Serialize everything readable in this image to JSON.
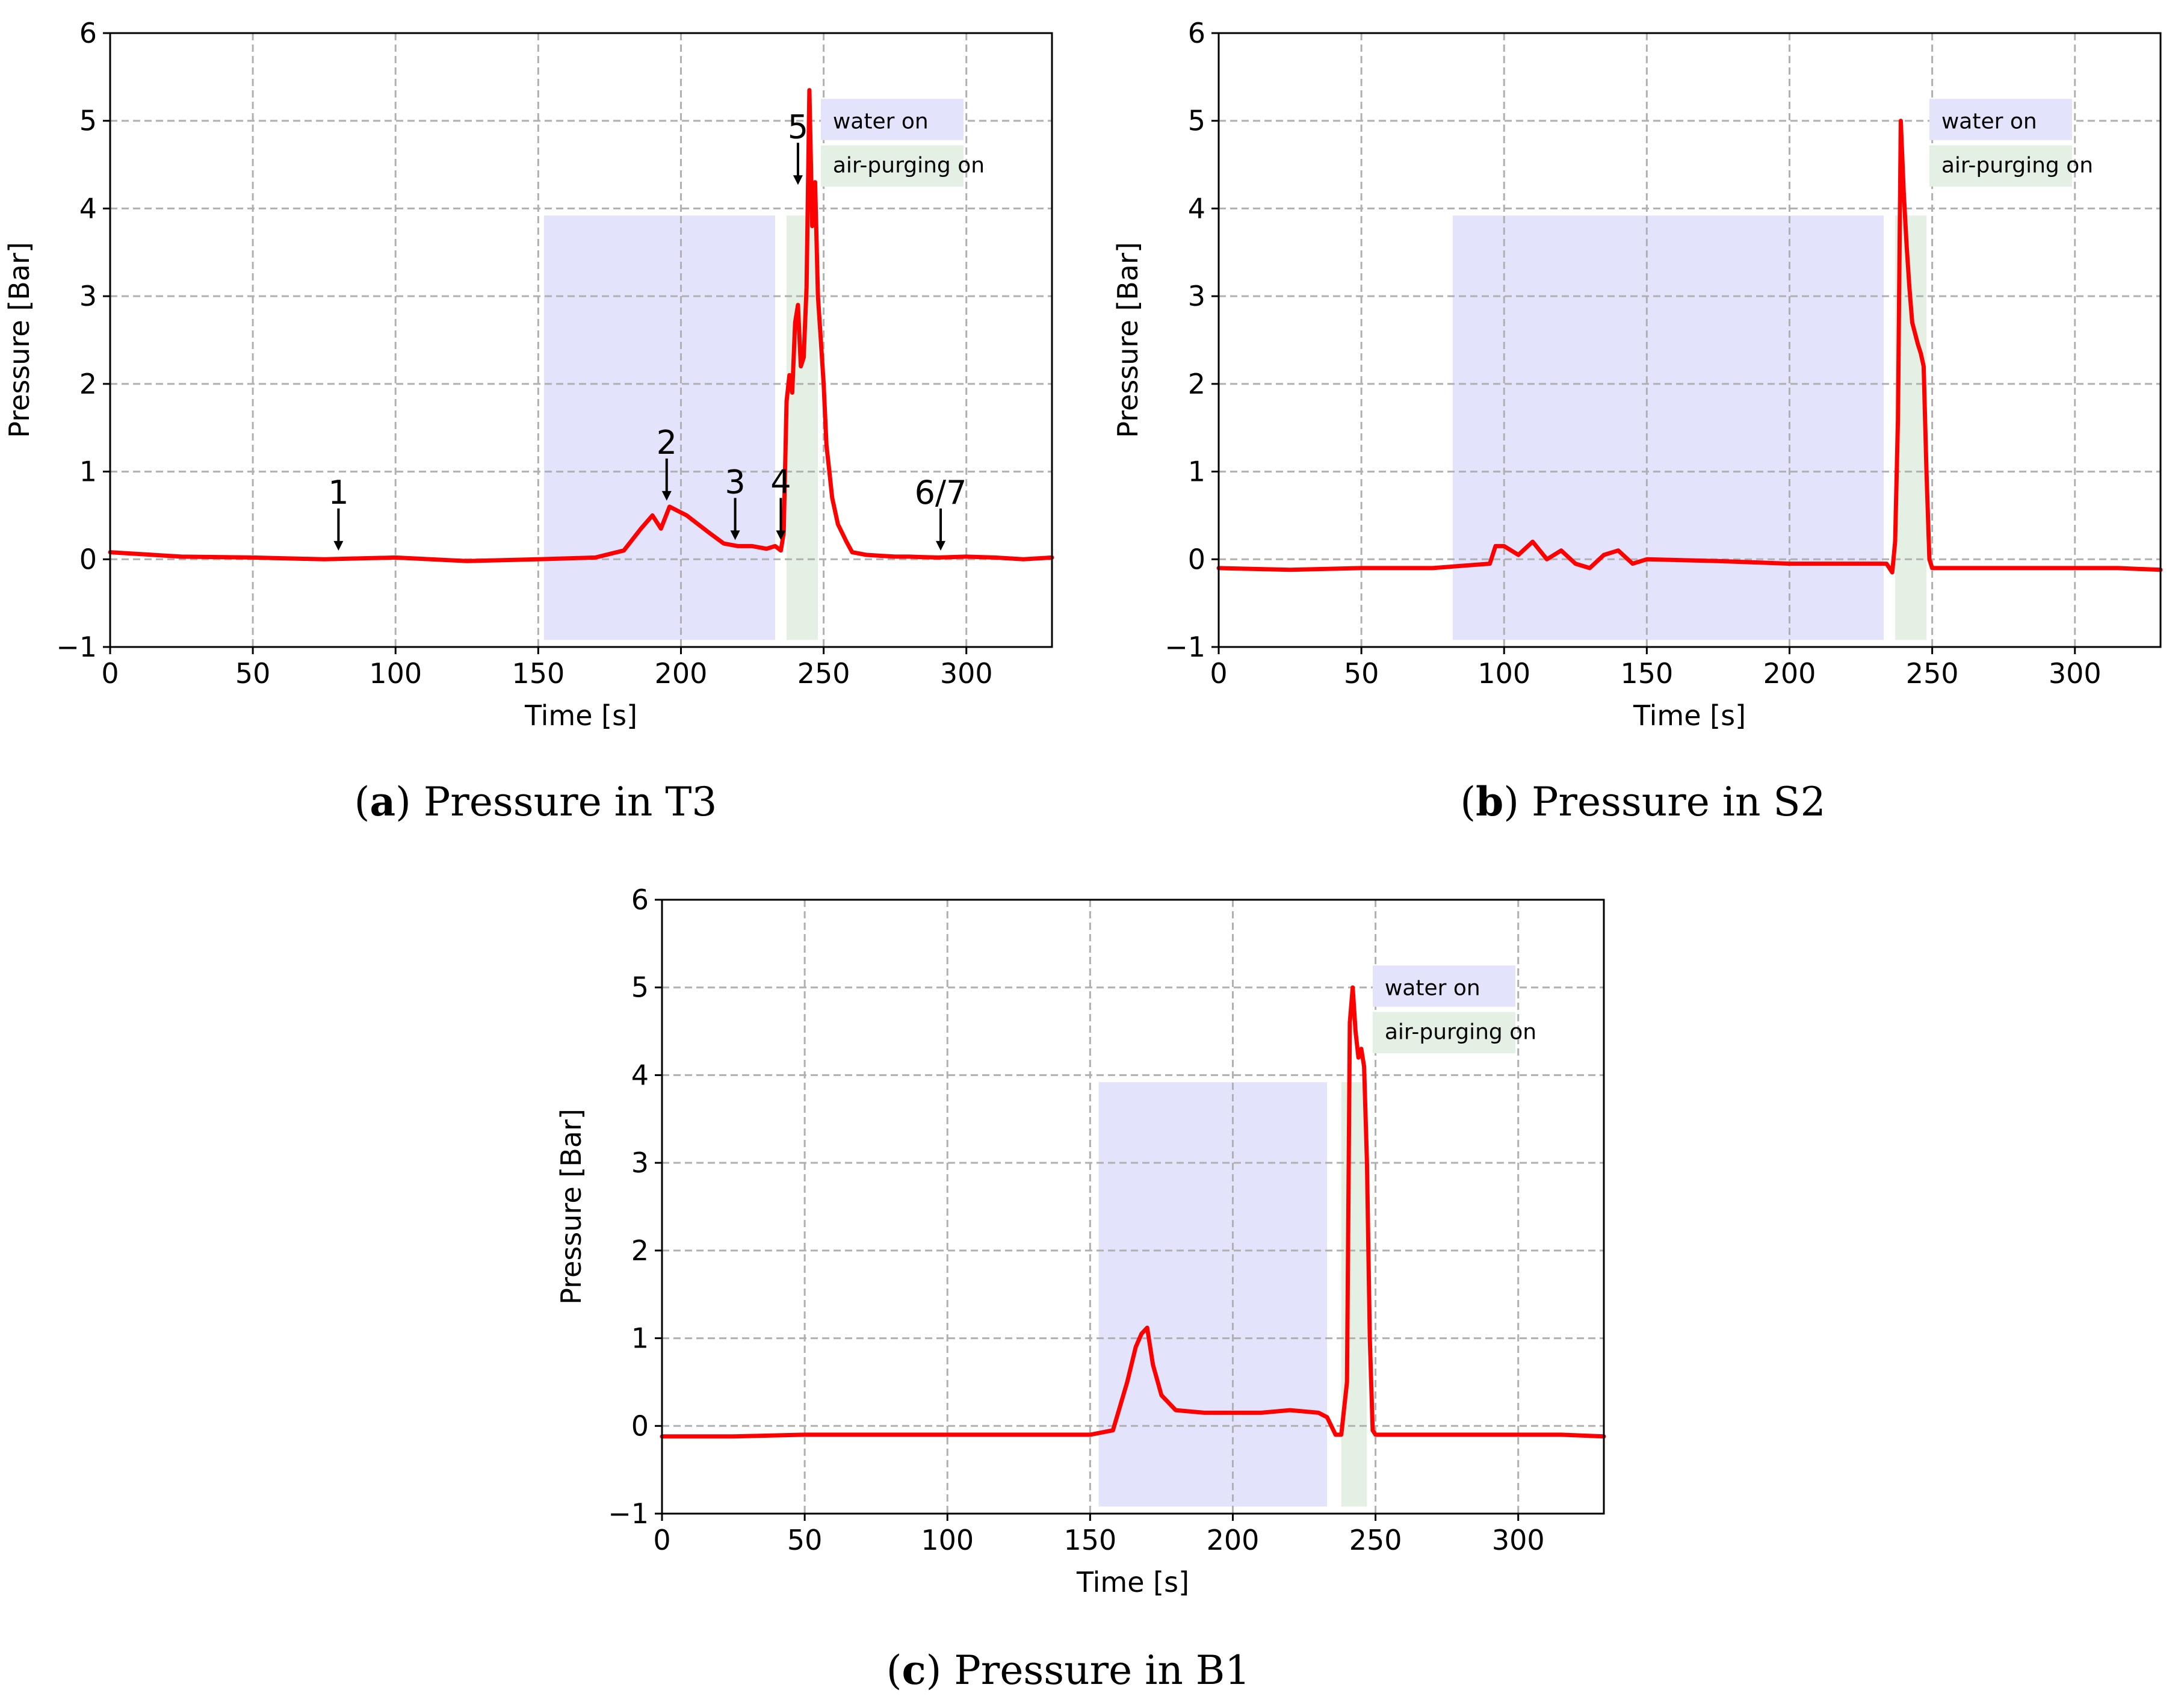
{
  "legend": {
    "water_label": "water on",
    "air_label": "air-purging on",
    "water_color": "#e3e3fb",
    "air_color": "#e3f0e3"
  },
  "style": {
    "line_color": "#ff0000",
    "grid_color": "#b0b0b0",
    "axis_color": "#000000"
  },
  "chart_data": [
    {
      "id": "a",
      "type": "line",
      "caption_letter": "a",
      "caption_text": "Pressure in T3",
      "xlabel": "Time [s]",
      "ylabel": "Pressure [Bar]",
      "xlim": [
        0,
        330
      ],
      "ylim": [
        -1,
        6
      ],
      "xticks": [
        0,
        50,
        100,
        150,
        200,
        250,
        300
      ],
      "yticks": [
        -1,
        0,
        1,
        2,
        3,
        4,
        5,
        6
      ],
      "xtick_labels": [
        "0",
        "50",
        "100",
        "150",
        "200",
        "250",
        "300"
      ],
      "ytick_labels": [
        "−1",
        "0",
        "1",
        "2",
        "3",
        "4",
        "5",
        "6"
      ],
      "grid": true,
      "legend_position": "top-right",
      "water_on": [
        152,
        233
      ],
      "air_purging_on": [
        237,
        248
      ],
      "series": [
        {
          "name": "pressure",
          "x": [
            0,
            25,
            50,
            75,
            100,
            125,
            150,
            170,
            180,
            186,
            190,
            193,
            196,
            199,
            202,
            206,
            210,
            215,
            220,
            225,
            230,
            233,
            235,
            236,
            237,
            238,
            239,
            240,
            241,
            242,
            243,
            244,
            245,
            246,
            247,
            248,
            249,
            250,
            251,
            252,
            253,
            255,
            258,
            260,
            265,
            270,
            275,
            280,
            290,
            300,
            310,
            320,
            330
          ],
          "y": [
            0.08,
            0.03,
            0.02,
            0.0,
            0.02,
            -0.02,
            0.0,
            0.02,
            0.1,
            0.35,
            0.5,
            0.35,
            0.6,
            0.55,
            0.5,
            0.4,
            0.3,
            0.18,
            0.15,
            0.15,
            0.12,
            0.15,
            0.1,
            0.3,
            1.8,
            2.1,
            1.9,
            2.7,
            2.9,
            2.2,
            2.3,
            3.1,
            5.35,
            3.8,
            4.3,
            3.0,
            2.5,
            2.0,
            1.3,
            1.0,
            0.7,
            0.4,
            0.2,
            0.08,
            0.05,
            0.04,
            0.03,
            0.03,
            0.02,
            0.03,
            0.02,
            0.0,
            0.02
          ]
        }
      ],
      "annotations": [
        {
          "label": "1",
          "x": 80,
          "y": 0.03
        },
        {
          "label": "2",
          "x": 195,
          "y": 0.6
        },
        {
          "label": "3",
          "x": 219,
          "y": 0.15
        },
        {
          "label": "4",
          "x": 235,
          "y": 0.15
        },
        {
          "label": "5",
          "x": 241,
          "y": 4.2
        },
        {
          "label": "6/7",
          "x": 291,
          "y": 0.03
        }
      ]
    },
    {
      "id": "b",
      "type": "line",
      "caption_letter": "b",
      "caption_text": "Pressure in S2",
      "xlabel": "Time [s]",
      "ylabel": "Pressure [Bar]",
      "xlim": [
        0,
        330
      ],
      "ylim": [
        -1,
        6
      ],
      "xticks": [
        0,
        50,
        100,
        150,
        200,
        250,
        300
      ],
      "yticks": [
        -1,
        0,
        1,
        2,
        3,
        4,
        5,
        6
      ],
      "xtick_labels": [
        "0",
        "50",
        "100",
        "150",
        "200",
        "250",
        "300"
      ],
      "ytick_labels": [
        "−1",
        "0",
        "1",
        "2",
        "3",
        "4",
        "5",
        "6"
      ],
      "grid": true,
      "legend_position": "top-right",
      "water_on": [
        82,
        233
      ],
      "air_purging_on": [
        237,
        248
      ],
      "series": [
        {
          "name": "pressure",
          "x": [
            0,
            25,
            50,
            75,
            95,
            97,
            100,
            105,
            110,
            115,
            120,
            125,
            130,
            135,
            140,
            145,
            150,
            175,
            200,
            225,
            234,
            236,
            237,
            238,
            239,
            240,
            241,
            242,
            243,
            245,
            246,
            247,
            248,
            249,
            250,
            260,
            275,
            300,
            315,
            330
          ],
          "y": [
            -0.1,
            -0.12,
            -0.1,
            -0.1,
            -0.05,
            0.15,
            0.15,
            0.05,
            0.2,
            0.0,
            0.1,
            -0.05,
            -0.1,
            0.05,
            0.1,
            -0.05,
            0.0,
            -0.02,
            -0.05,
            -0.05,
            -0.05,
            -0.15,
            0.2,
            1.6,
            5.0,
            4.2,
            3.6,
            3.1,
            2.7,
            2.45,
            2.35,
            2.2,
            1.0,
            0.0,
            -0.1,
            -0.1,
            -0.1,
            -0.1,
            -0.1,
            -0.12
          ]
        }
      ],
      "annotations": []
    },
    {
      "id": "c",
      "type": "line",
      "caption_letter": "c",
      "caption_text": "Pressure in B1",
      "xlabel": "Time [s]",
      "ylabel": "Pressure [Bar]",
      "xlim": [
        0,
        330
      ],
      "ylim": [
        -1,
        6
      ],
      "xticks": [
        0,
        50,
        100,
        150,
        200,
        250,
        300
      ],
      "yticks": [
        -1,
        0,
        1,
        2,
        3,
        4,
        5,
        6
      ],
      "xtick_labels": [
        "0",
        "50",
        "100",
        "150",
        "200",
        "250",
        "300"
      ],
      "ytick_labels": [
        "−1",
        "0",
        "1",
        "2",
        "3",
        "4",
        "5",
        "6"
      ],
      "grid": true,
      "legend_position": "top-right",
      "water_on": [
        153,
        233
      ],
      "air_purging_on": [
        238,
        247
      ],
      "series": [
        {
          "name": "pressure",
          "x": [
            0,
            25,
            50,
            75,
            100,
            125,
            150,
            158,
            163,
            166,
            168,
            170,
            172,
            175,
            180,
            190,
            200,
            210,
            220,
            230,
            233,
            236,
            238,
            240,
            241,
            242,
            243,
            244,
            245,
            246,
            247,
            248,
            249,
            250,
            260,
            275,
            300,
            315,
            330
          ],
          "y": [
            -0.12,
            -0.12,
            -0.1,
            -0.1,
            -0.1,
            -0.1,
            -0.1,
            -0.05,
            0.5,
            0.9,
            1.05,
            1.12,
            0.7,
            0.35,
            0.18,
            0.15,
            0.15,
            0.15,
            0.18,
            0.15,
            0.1,
            -0.1,
            -0.1,
            0.5,
            4.6,
            5.0,
            4.5,
            4.2,
            4.3,
            4.1,
            3.0,
            1.0,
            -0.05,
            -0.1,
            -0.1,
            -0.1,
            -0.1,
            -0.1,
            -0.12
          ]
        }
      ],
      "annotations": []
    }
  ]
}
